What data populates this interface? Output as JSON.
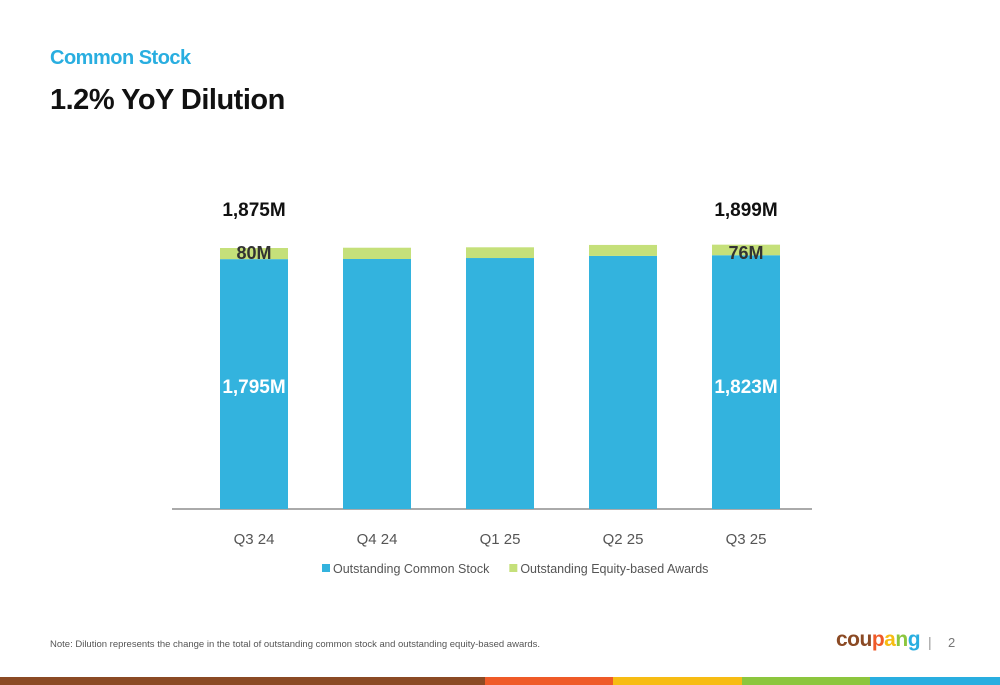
{
  "header": {
    "subtitle": "Common Stock",
    "title": "1.2% YoY Dilution"
  },
  "chart_data": {
    "type": "bar",
    "stacked": true,
    "categories": [
      "Q3 24",
      "Q4 24",
      "Q1 25",
      "Q2 25",
      "Q3 25"
    ],
    "series": [
      {
        "name": "Outstanding Common Stock",
        "color": "#33b3de",
        "values": [
          1795,
          1796,
          1803,
          1818,
          1823
        ]
      },
      {
        "name": "Outstanding Equity-based Awards",
        "color": "#c5e07a",
        "values": [
          80,
          81,
          77,
          79,
          76
        ]
      }
    ],
    "ylim": [
      0,
      1900
    ],
    "labels": {
      "totals": [
        "1,875M",
        "",
        "",
        "",
        "1,899M"
      ],
      "awards": [
        "80M",
        "",
        "",
        "",
        "76M"
      ],
      "stock": [
        "1,795M",
        "",
        "",
        "",
        "1,823M"
      ]
    },
    "legend_placement": "bottom",
    "grid": false
  },
  "footer": {
    "note": "Note: Dilution represents the change in the total of outstanding common stock and outstanding equity-based awards.",
    "logo": "coupang",
    "page": "2",
    "separator": "|",
    "bar_colors": [
      "#8b4a24",
      "#ef5a28",
      "#f7bc13",
      "#8cc63e",
      "#29aee0"
    ]
  }
}
